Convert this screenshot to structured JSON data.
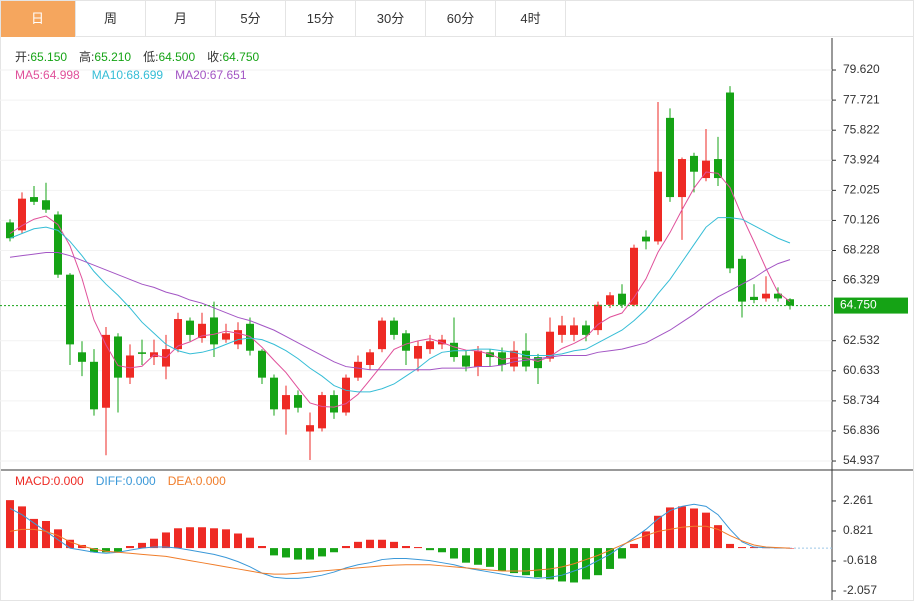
{
  "tabs": [
    "日",
    "周",
    "月",
    "5分",
    "15分",
    "30分",
    "60分",
    "4时"
  ],
  "active_tab": 0,
  "chart_data": [
    {
      "type": "candlestick",
      "up_color": "#ee2a24",
      "down_color": "#15a315",
      "info": [
        {
          "label": "开:",
          "value": "65.150"
        },
        {
          "label": "高:",
          "value": "65.210"
        },
        {
          "label": "低:",
          "value": "64.500"
        },
        {
          "label": "收:",
          "value": "64.750"
        }
      ],
      "open": [
        70.0,
        69.5,
        71.6,
        71.4,
        70.5,
        66.7,
        61.8,
        61.2,
        58.3,
        62.8,
        60.2,
        61.8,
        61.5,
        60.9,
        62.0,
        63.8,
        62.7,
        64.0,
        62.6,
        62.3,
        63.6,
        61.9,
        60.2,
        58.2,
        59.1,
        56.8,
        57.0,
        59.1,
        58.0,
        60.2,
        61.0,
        62.0,
        63.8,
        63.0,
        61.4,
        62.0,
        62.3,
        62.4,
        61.6,
        60.9,
        61.8,
        61.8,
        60.9,
        61.9,
        61.5,
        61.4,
        62.9,
        62.9,
        63.5,
        63.2,
        64.8,
        65.5,
        64.8,
        69.1,
        68.8,
        76.6,
        71.6,
        74.2,
        72.8,
        74.0,
        78.2,
        67.7,
        65.3,
        65.2,
        65.5,
        65.15
      ],
      "high": [
        70.2,
        71.9,
        72.3,
        72.5,
        70.7,
        66.8,
        62.5,
        62.0,
        63.4,
        63.0,
        62.3,
        62.6,
        62.6,
        62.9,
        64.3,
        64.0,
        64.3,
        65.0,
        63.6,
        63.7,
        64.0,
        62.0,
        60.4,
        59.7,
        59.4,
        58.0,
        59.3,
        59.4,
        60.4,
        61.6,
        62.0,
        64.0,
        64.0,
        63.2,
        62.5,
        62.9,
        62.9,
        64.0,
        61.9,
        62.2,
        62.0,
        62.1,
        62.5,
        63.0,
        61.7,
        64.0,
        64.1,
        64.0,
        63.8,
        65.0,
        65.6,
        66.1,
        68.6,
        69.5,
        77.6,
        77.2,
        74.1,
        74.4,
        75.9,
        75.4,
        78.6,
        67.9,
        66.1,
        66.6,
        65.9,
        65.21
      ],
      "low": [
        68.8,
        69.3,
        71.1,
        70.6,
        66.5,
        61.0,
        60.3,
        57.8,
        55.3,
        58.0,
        59.8,
        61.0,
        61.0,
        60.1,
        61.8,
        62.5,
        62.4,
        61.5,
        62.4,
        62.0,
        61.6,
        59.8,
        57.8,
        56.6,
        58.0,
        55.0,
        56.8,
        57.6,
        57.8,
        60.0,
        60.7,
        61.8,
        62.6,
        61.0,
        60.6,
        61.7,
        62.0,
        61.2,
        60.6,
        60.3,
        60.9,
        60.6,
        60.6,
        60.6,
        59.8,
        61.2,
        62.4,
        62.5,
        62.5,
        62.9,
        64.6,
        64.6,
        64.7,
        68.3,
        68.6,
        71.3,
        68.9,
        71.9,
        72.6,
        72.3,
        66.8,
        64.0,
        64.9,
        65.0,
        65.0,
        64.5
      ],
      "close": [
        69.0,
        71.5,
        71.3,
        70.8,
        66.7,
        62.3,
        61.2,
        58.2,
        62.9,
        60.2,
        61.6,
        61.7,
        61.8,
        62.0,
        63.9,
        62.9,
        63.6,
        62.3,
        63.0,
        63.2,
        61.9,
        60.2,
        58.2,
        59.1,
        58.3,
        57.2,
        59.1,
        58.0,
        60.2,
        61.2,
        61.8,
        63.8,
        62.9,
        61.9,
        62.2,
        62.5,
        62.6,
        61.5,
        60.9,
        61.9,
        61.5,
        61.0,
        61.9,
        60.9,
        60.8,
        63.1,
        63.5,
        63.5,
        62.9,
        64.8,
        65.4,
        64.8,
        68.4,
        68.8,
        73.2,
        71.6,
        74.0,
        73.2,
        73.9,
        72.8,
        67.1,
        65.0,
        65.1,
        65.5,
        65.2,
        64.75
      ],
      "series": [
        {
          "name": "MA5:",
          "current": "64.998",
          "color": "#e0509a",
          "values": [
            69.3,
            69.8,
            70.2,
            70.4,
            69.86,
            68.52,
            66.46,
            63.84,
            62.26,
            60.96,
            60.82,
            60.92,
            61.64,
            61.46,
            62.2,
            62.46,
            62.84,
            62.94,
            63.14,
            63.0,
            62.8,
            62.12,
            61.3,
            60.52,
            59.54,
            58.6,
            58.38,
            58.34,
            58.56,
            59.14,
            60.06,
            61.0,
            61.98,
            62.32,
            62.52,
            62.66,
            62.42,
            62.14,
            61.94,
            61.88,
            61.68,
            61.36,
            61.44,
            61.44,
            61.22,
            61.54,
            62.04,
            62.36,
            62.76,
            63.56,
            64.02,
            64.28,
            65.26,
            66.44,
            68.12,
            69.36,
            70.8,
            72.16,
            73.18,
            73.1,
            72.2,
            70.4,
            68.78,
            67.1,
            65.58,
            64.998
          ]
        },
        {
          "name": "MA10:",
          "current": "68.699",
          "color": "#35bdd6",
          "values": [
            69.0,
            69.3,
            69.6,
            69.7,
            69.5,
            68.8,
            67.9,
            66.9,
            66.1,
            65.4,
            64.6,
            63.7,
            63.0,
            62.3,
            61.9,
            61.7,
            61.8,
            62.0,
            62.3,
            62.6,
            62.7,
            62.6,
            62.3,
            61.9,
            61.4,
            60.8,
            60.3,
            59.7,
            59.4,
            59.3,
            59.3,
            59.5,
            59.8,
            60.3,
            60.8,
            61.4,
            61.8,
            61.9,
            61.9,
            62.0,
            62.0,
            61.9,
            61.8,
            61.6,
            61.6,
            61.6,
            61.7,
            61.9,
            62.0,
            62.4,
            62.8,
            63.2,
            63.8,
            64.5,
            65.5,
            66.4,
            67.5,
            68.6,
            69.7,
            70.3,
            70.3,
            70.2,
            69.8,
            69.4,
            69.0,
            68.699
          ]
        },
        {
          "name": "MA20:",
          "current": "67.651",
          "color": "#a355c4",
          "values": [
            67.8,
            67.9,
            68.0,
            68.1,
            68.1,
            67.9,
            67.6,
            67.3,
            67.0,
            66.7,
            66.4,
            66.1,
            65.9,
            65.6,
            65.4,
            65.1,
            64.9,
            64.6,
            64.3,
            64.0,
            63.8,
            63.5,
            63.2,
            62.8,
            62.4,
            62.0,
            61.6,
            61.2,
            60.9,
            60.8,
            60.7,
            60.7,
            60.7,
            60.7,
            60.7,
            60.7,
            60.8,
            60.8,
            60.8,
            60.9,
            60.9,
            61.0,
            61.2,
            61.3,
            61.4,
            61.5,
            61.6,
            61.6,
            61.6,
            61.8,
            61.9,
            62.0,
            62.2,
            62.4,
            62.8,
            63.2,
            63.7,
            64.2,
            64.8,
            65.3,
            65.7,
            66.1,
            66.5,
            67.0,
            67.4,
            67.651
          ]
        }
      ],
      "ylim": [
        54.37,
        81.2
      ],
      "yticks": [
        {
          "value": 79.62,
          "label": "79.620"
        },
        77.721,
        75.822,
        73.924,
        72.025,
        70.126,
        68.228,
        66.329,
        62.532,
        60.633,
        58.734,
        56.836,
        54.937
      ],
      "last_price": {
        "value": 64.75,
        "label": "64.750"
      },
      "grid": true
    },
    {
      "type": "macd",
      "up_color": "#ee2a24",
      "down_color": "#15a315",
      "histogram": {
        "name": "MACD:",
        "current": "0.000",
        "color": "#ee2a24",
        "values": [
          2.3,
          2.0,
          1.4,
          1.3,
          0.9,
          0.4,
          0.15,
          -0.2,
          -0.2,
          -0.2,
          0.1,
          0.25,
          0.45,
          0.75,
          0.95,
          1.0,
          1.0,
          0.95,
          0.9,
          0.7,
          0.5,
          0.1,
          -0.35,
          -0.45,
          -0.55,
          -0.55,
          -0.4,
          -0.2,
          0.1,
          0.3,
          0.4,
          0.4,
          0.3,
          0.1,
          0.05,
          -0.1,
          -0.2,
          -0.5,
          -0.7,
          -0.8,
          -0.9,
          -1.1,
          -1.2,
          -1.3,
          -1.4,
          -1.5,
          -1.6,
          -1.65,
          -1.5,
          -1.3,
          -1.0,
          -0.5,
          0.2,
          0.8,
          1.55,
          1.95,
          2.0,
          1.9,
          1.7,
          1.1,
          0.2,
          0.05,
          0.05,
          0.02,
          0.01,
          0.0
        ]
      },
      "series": [
        {
          "name": "DIFF:",
          "current": "0.000",
          "color": "#3a98d8",
          "values": [
            1.9,
            1.6,
            1.2,
            0.8,
            0.4,
            0.0,
            -0.1,
            -0.2,
            -0.25,
            -0.2,
            -0.1,
            0.0,
            0.05,
            0.05,
            0.0,
            -0.1,
            -0.2,
            -0.3,
            -0.45,
            -0.65,
            -0.9,
            -1.2,
            -1.4,
            -1.45,
            -1.45,
            -1.4,
            -1.3,
            -1.15,
            -0.95,
            -0.8,
            -0.7,
            -0.55,
            -0.5,
            -0.5,
            -0.55,
            -0.6,
            -0.7,
            -0.8,
            -0.95,
            -1.05,
            -1.15,
            -1.25,
            -1.35,
            -1.4,
            -1.45,
            -1.4,
            -1.3,
            -1.1,
            -0.9,
            -0.6,
            -0.3,
            0.1,
            0.5,
            0.9,
            1.4,
            1.8,
            2.0,
            2.1,
            2.0,
            1.6,
            0.9,
            0.3,
            0.05,
            0.02,
            0.01,
            0.0
          ]
        },
        {
          "name": "DEA:",
          "current": "0.000",
          "color": "#f07d2a",
          "values": [
            0.8,
            0.9,
            0.9,
            0.8,
            0.6,
            0.3,
            0.1,
            -0.05,
            -0.15,
            -0.2,
            -0.25,
            -0.3,
            -0.35,
            -0.4,
            -0.5,
            -0.6,
            -0.7,
            -0.8,
            -0.9,
            -1.0,
            -1.1,
            -1.2,
            -1.25,
            -1.25,
            -1.2,
            -1.15,
            -1.1,
            -1.05,
            -1.0,
            -0.95,
            -0.9,
            -0.85,
            -0.82,
            -0.8,
            -0.8,
            -0.8,
            -0.85,
            -0.9,
            -0.95,
            -1.0,
            -1.05,
            -1.1,
            -1.1,
            -1.1,
            -1.05,
            -1.0,
            -0.9,
            -0.75,
            -0.55,
            -0.35,
            -0.1,
            0.15,
            0.4,
            0.6,
            0.8,
            0.9,
            1.0,
            1.05,
            1.05,
            0.9,
            0.6,
            0.35,
            0.15,
            0.05,
            0.02,
            0.0
          ]
        }
      ],
      "ylim": [
        -2.49,
        3.65
      ],
      "yticks": [
        2.261,
        0.821,
        -0.618,
        -2.057
      ]
    }
  ]
}
